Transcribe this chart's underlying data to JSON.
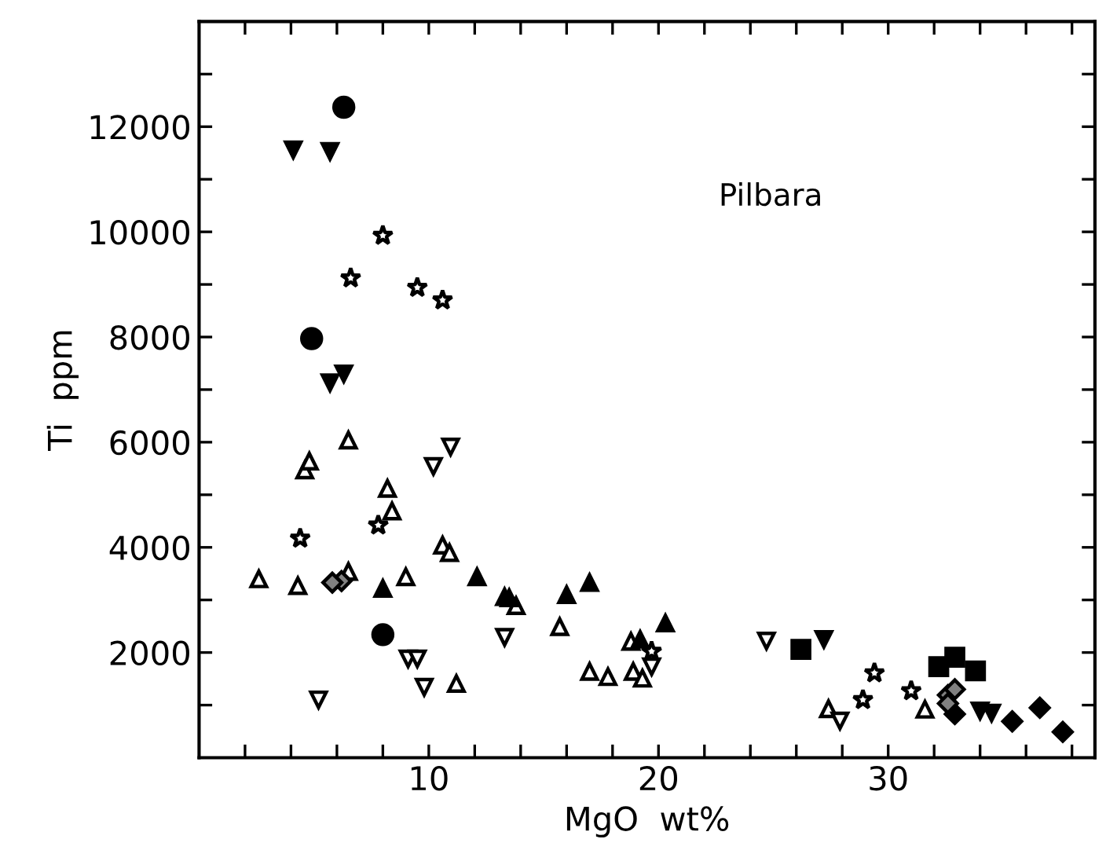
{
  "chart_data": {
    "type": "scatter",
    "xlabel": "MgO  wt%",
    "ylabel": "Ti  ppm",
    "annotations": [
      "Pilbara"
    ],
    "xlim": [
      0,
      39
    ],
    "ylim": [
      0,
      14000
    ],
    "xticks": [
      {
        "value": 2,
        "label": null
      },
      {
        "value": 4,
        "label": null
      },
      {
        "value": 6,
        "label": null
      },
      {
        "value": 8,
        "label": null
      },
      10,
      {
        "value": 12,
        "label": null
      },
      {
        "value": 14,
        "label": null
      },
      {
        "value": 16,
        "label": null
      },
      {
        "value": 18,
        "label": null
      },
      20,
      {
        "value": 22,
        "label": null
      },
      {
        "value": 24,
        "label": null
      },
      {
        "value": 26,
        "label": null
      },
      {
        "value": 28,
        "label": null
      },
      30,
      {
        "value": 32,
        "label": null
      },
      {
        "value": 34,
        "label": null
      },
      {
        "value": 36,
        "label": null
      },
      {
        "value": 38,
        "label": null
      }
    ],
    "yticks": [
      {
        "value": 1000,
        "label": null
      },
      2000,
      {
        "value": 3000,
        "label": null
      },
      4000,
      {
        "value": 5000,
        "label": null
      },
      6000,
      {
        "value": 7000,
        "label": null
      },
      8000,
      {
        "value": 9000,
        "label": null
      },
      10000,
      {
        "value": 11000,
        "label": null
      },
      12000,
      {
        "value": 13000,
        "label": null
      }
    ],
    "grid": false,
    "legend": false,
    "series": [
      {
        "color": "#000000",
        "marker": "circle",
        "x": [
          6.3,
          4.9,
          8.0
        ],
        "values": [
          12370,
          7970,
          2340
        ]
      },
      {
        "color": "#000000",
        "marker": "triangle_down",
        "x": [
          4.1,
          5.7,
          5.7,
          6.3,
          27.2,
          34.0,
          34.5
        ],
        "values": [
          11560,
          11530,
          7130,
          7300,
          2250,
          890,
          850
        ]
      },
      {
        "color": "#ffffff",
        "marker": "star",
        "x": [
          8.0,
          6.6,
          9.5,
          10.6,
          7.8,
          29.4,
          28.9,
          31.0,
          19.7,
          4.4
        ],
        "values": [
          9930,
          9120,
          8940,
          8700,
          4420,
          1610,
          1100,
          1270,
          2020,
          4170
        ]
      },
      {
        "color": "#ffffff",
        "marker": "triangle",
        "x": [
          2.6,
          4.3,
          4.6,
          4.8,
          6.5,
          8.2,
          8.4,
          9.0,
          10.6,
          10.9,
          13.8,
          15.7,
          17.0,
          17.8,
          18.8,
          18.9,
          19.3,
          11.2,
          27.4,
          31.6,
          6.5
        ],
        "values": [
          3400,
          3270,
          5470,
          5640,
          6040,
          5120,
          4690,
          3440,
          4040,
          3900,
          2890,
          2490,
          1640,
          1540,
          2210,
          1640,
          1510,
          1410,
          930,
          920,
          3540
        ]
      },
      {
        "color": "#ffffff",
        "marker": "triangle_down",
        "x": [
          10.2,
          10.95,
          5.2,
          9.1,
          9.5,
          9.8,
          13.3,
          24.7,
          27.9,
          19.7
        ],
        "values": [
          5540,
          5910,
          1100,
          1880,
          1880,
          1340,
          2290,
          2220,
          700,
          1730
        ]
      },
      {
        "color": "#000000",
        "marker": "triangle",
        "x": [
          8.0,
          12.1,
          13.3,
          13.5,
          16.0,
          17.0,
          20.3,
          19.2
        ],
        "values": [
          3220,
          3440,
          3060,
          3040,
          3100,
          3330,
          2560,
          2250
        ]
      },
      {
        "color": "#000000",
        "marker": "square",
        "x": [
          26.2,
          32.2,
          32.9,
          33.8
        ],
        "values": [
          2060,
          1730,
          1910,
          1650
        ]
      },
      {
        "color": "#000000",
        "marker": "diamond",
        "x": [
          32.9,
          36.6,
          37.6,
          35.4
        ],
        "values": [
          830,
          950,
          490,
          690
        ]
      },
      {
        "color": "#808080",
        "marker": "diamond",
        "x": [
          32.6,
          32.9,
          32.6,
          6.2,
          5.8
        ],
        "values": [
          1190,
          1300,
          1030,
          3360,
          3330
        ]
      }
    ]
  }
}
